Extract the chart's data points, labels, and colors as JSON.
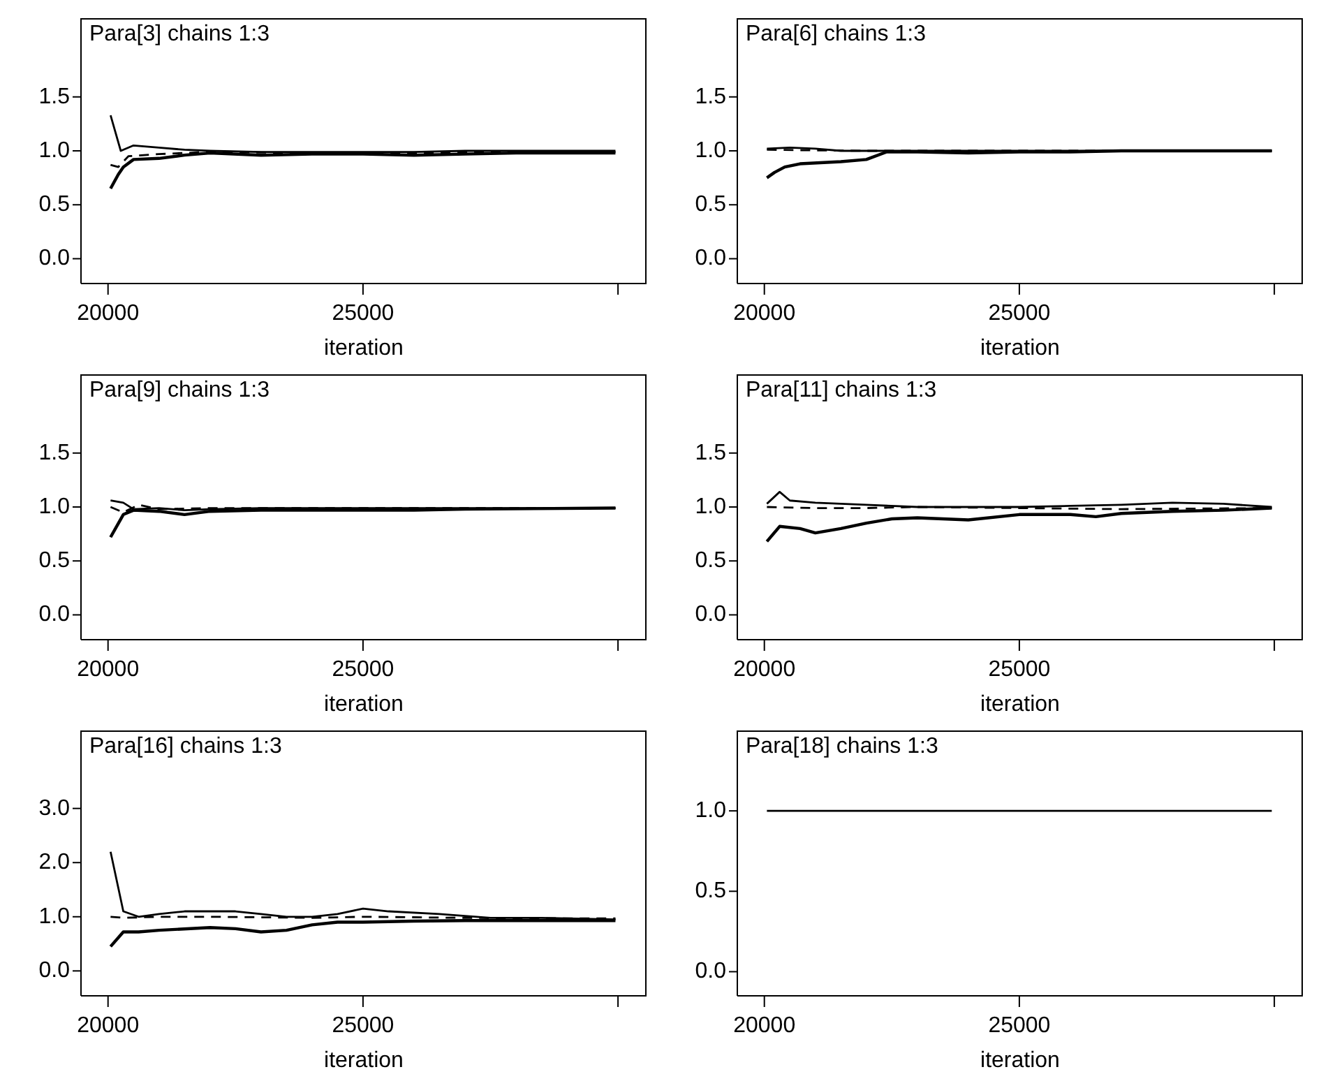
{
  "chart_data": [
    {
      "type": "line",
      "title": "Para[3] chains 1:3",
      "xlabel": "iteration",
      "xlim": [
        19470,
        30560
      ],
      "xticks": [
        {
          "value": 20000,
          "label": "20000"
        },
        {
          "value": 25000,
          "label": "25000"
        },
        {
          "value": 30000,
          "label": null
        }
      ],
      "ylim": [
        -0.23,
        2.23
      ],
      "yticks": [
        {
          "value": 0,
          "label": "0.0"
        },
        {
          "value": 0.5,
          "label": "0.5"
        },
        {
          "value": 1,
          "label": "1.0"
        },
        {
          "value": 1.5,
          "label": "1.5"
        }
      ],
      "series": [
        {
          "color": "#000000",
          "line_style": "solid",
          "x": [
            20050,
            20250,
            20500,
            21000,
            21500,
            22000,
            23000,
            24000,
            25000,
            26000,
            27000,
            28000,
            29000,
            29950
          ],
          "values": [
            1.33,
            1.0,
            1.05,
            1.03,
            1.01,
            1.0,
            0.99,
            0.99,
            0.99,
            0.99,
            1.0,
            1.0,
            1.0,
            1.0
          ]
        },
        {
          "color": "#000000",
          "line_style": "solid",
          "x": [
            20050,
            20200,
            20300,
            20500,
            21000,
            21500,
            22000,
            23000,
            24000,
            25000,
            26000,
            27000,
            28000,
            29000,
            29950
          ],
          "values": [
            0.65,
            0.78,
            0.85,
            0.92,
            0.93,
            0.96,
            0.98,
            0.96,
            0.97,
            0.97,
            0.96,
            0.97,
            0.98,
            0.98,
            0.98
          ]
        },
        {
          "color": "#000000",
          "line_style": "dashed",
          "x": [
            20050,
            20200,
            20400,
            21000,
            22000,
            24000,
            26000,
            28000,
            29950
          ],
          "values": [
            0.87,
            0.85,
            0.95,
            0.97,
            0.99,
            0.98,
            0.98,
            0.99,
            0.99
          ]
        }
      ]
    },
    {
      "type": "line",
      "title": "Para[6] chains 1:3",
      "xlabel": "iteration",
      "xlim": [
        19470,
        30560
      ],
      "xticks": [
        {
          "value": 20000,
          "label": "20000"
        },
        {
          "value": 25000,
          "label": "25000"
        },
        {
          "value": 30000,
          "label": null
        }
      ],
      "ylim": [
        -0.23,
        2.23
      ],
      "yticks": [
        {
          "value": 0,
          "label": "0.0"
        },
        {
          "value": 0.5,
          "label": "0.5"
        },
        {
          "value": 1,
          "label": "1.0"
        },
        {
          "value": 1.5,
          "label": "1.5"
        }
      ],
      "series": [
        {
          "color": "#000000",
          "line_style": "solid",
          "x": [
            20050,
            20500,
            21000,
            21500,
            22000,
            23000,
            25000,
            27000,
            29950
          ],
          "values": [
            1.02,
            1.03,
            1.02,
            1.0,
            1.0,
            1.0,
            1.0,
            1.0,
            1.0
          ]
        },
        {
          "color": "#000000",
          "line_style": "solid",
          "x": [
            20050,
            20200,
            20400,
            20700,
            21500,
            22000,
            22400,
            23000,
            24000,
            25000,
            26000,
            27000,
            28000,
            29950
          ],
          "values": [
            0.75,
            0.8,
            0.85,
            0.88,
            0.9,
            0.92,
            0.99,
            0.99,
            0.98,
            0.99,
            0.99,
            1.0,
            1.0,
            1.0
          ]
        },
        {
          "color": "#000000",
          "line_style": "dashed",
          "x": [
            20050,
            22000,
            29950
          ],
          "values": [
            1.01,
            1.0,
            1.0
          ]
        }
      ]
    },
    {
      "type": "line",
      "title": "Para[9] chains 1:3",
      "xlabel": "iteration",
      "xlim": [
        19470,
        30560
      ],
      "xticks": [
        {
          "value": 20000,
          "label": "20000"
        },
        {
          "value": 25000,
          "label": "25000"
        },
        {
          "value": 30000,
          "label": null
        }
      ],
      "ylim": [
        -0.23,
        2.23
      ],
      "yticks": [
        {
          "value": 0,
          "label": "0.0"
        },
        {
          "value": 0.5,
          "label": "0.5"
        },
        {
          "value": 1,
          "label": "1.0"
        },
        {
          "value": 1.5,
          "label": "1.5"
        }
      ],
      "series": [
        {
          "color": "#000000",
          "line_style": "solid",
          "x": [
            20050,
            20300,
            20500,
            21000,
            21500,
            22000,
            23000,
            29950
          ],
          "values": [
            1.06,
            1.04,
            0.98,
            0.99,
            0.97,
            0.98,
            0.99,
            0.99
          ]
        },
        {
          "color": "#000000",
          "line_style": "solid",
          "x": [
            20050,
            20300,
            20500,
            21000,
            21500,
            22000,
            23000,
            24000,
            25000,
            26000,
            27000,
            29950
          ],
          "values": [
            0.72,
            0.93,
            0.97,
            0.96,
            0.93,
            0.96,
            0.97,
            0.97,
            0.97,
            0.97,
            0.98,
            0.99
          ]
        },
        {
          "color": "#000000",
          "line_style": "dashed",
          "x": [
            20050,
            20300,
            20600,
            21000,
            22000,
            29950
          ],
          "values": [
            1.0,
            0.95,
            1.02,
            0.98,
            0.99,
            0.99
          ]
        }
      ]
    },
    {
      "type": "line",
      "title": "Para[11] chains 1:3",
      "xlabel": "iteration",
      "xlim": [
        19470,
        30560
      ],
      "xticks": [
        {
          "value": 20000,
          "label": "20000"
        },
        {
          "value": 25000,
          "label": "25000"
        },
        {
          "value": 30000,
          "label": null
        }
      ],
      "ylim": [
        -0.23,
        2.23
      ],
      "yticks": [
        {
          "value": 0,
          "label": "0.0"
        },
        {
          "value": 0.5,
          "label": "0.5"
        },
        {
          "value": 1,
          "label": "1.0"
        },
        {
          "value": 1.5,
          "label": "1.5"
        }
      ],
      "series": [
        {
          "color": "#000000",
          "line_style": "solid",
          "x": [
            20050,
            20300,
            20500,
            21000,
            22000,
            23000,
            24000,
            25000,
            26000,
            27000,
            28000,
            29000,
            29950
          ],
          "values": [
            1.03,
            1.14,
            1.06,
            1.04,
            1.02,
            1.0,
            1.0,
            1.0,
            1.01,
            1.02,
            1.04,
            1.03,
            1.0
          ]
        },
        {
          "color": "#000000",
          "line_style": "solid",
          "x": [
            20050,
            20300,
            20700,
            21000,
            21500,
            22000,
            22500,
            23000,
            24000,
            25000,
            26000,
            26500,
            27000,
            28000,
            29000,
            29950
          ],
          "values": [
            0.68,
            0.82,
            0.8,
            0.76,
            0.8,
            0.85,
            0.89,
            0.9,
            0.88,
            0.93,
            0.93,
            0.91,
            0.94,
            0.96,
            0.97,
            0.99
          ]
        },
        {
          "color": "#000000",
          "line_style": "dashed",
          "x": [
            20050,
            21000,
            22000,
            23000,
            25000,
            27000,
            29950
          ],
          "values": [
            1.0,
            0.99,
            0.99,
            1.0,
            0.99,
            0.98,
            0.99
          ]
        }
      ]
    },
    {
      "type": "line",
      "title": "Para[16] chains 1:3",
      "xlabel": "iteration",
      "xlim": [
        19470,
        30560
      ],
      "xticks": [
        {
          "value": 20000,
          "label": "20000"
        },
        {
          "value": 25000,
          "label": "25000"
        },
        {
          "value": 30000,
          "label": null
        }
      ],
      "ylim": [
        -0.46,
        4.44
      ],
      "yticks": [
        {
          "value": 0,
          "label": "0.0"
        },
        {
          "value": 1,
          "label": "1.0"
        },
        {
          "value": 2,
          "label": "2.0"
        },
        {
          "value": 3,
          "label": "3.0"
        }
      ],
      "series": [
        {
          "color": "#000000",
          "line_style": "solid",
          "x": [
            20050,
            20300,
            20600,
            21000,
            21500,
            22500,
            23000,
            23500,
            24000,
            24500,
            25000,
            25500,
            26500,
            27500,
            28500,
            29950
          ],
          "values": [
            2.2,
            1.1,
            1.0,
            1.05,
            1.1,
            1.1,
            1.05,
            1.0,
            1.0,
            1.05,
            1.15,
            1.1,
            1.05,
            0.98,
            0.98,
            0.95
          ]
        },
        {
          "color": "#000000",
          "line_style": "solid",
          "x": [
            20050,
            20300,
            20600,
            21000,
            22000,
            22500,
            23000,
            23500,
            24000,
            24500,
            25000,
            26000,
            27000,
            28000,
            29000,
            29950
          ],
          "values": [
            0.45,
            0.72,
            0.72,
            0.75,
            0.8,
            0.78,
            0.72,
            0.75,
            0.85,
            0.9,
            0.9,
            0.92,
            0.93,
            0.93,
            0.93,
            0.93
          ]
        },
        {
          "color": "#000000",
          "line_style": "dashed",
          "x": [
            20050,
            20300,
            21000,
            22000,
            24000,
            25000,
            27000,
            29000,
            29950
          ],
          "values": [
            1.0,
            0.98,
            1.0,
            1.0,
            0.98,
            1.0,
            0.98,
            0.97,
            0.97
          ]
        }
      ]
    },
    {
      "type": "line",
      "title": "Para[18] chains 1:3",
      "xlabel": "iteration",
      "xlim": [
        19470,
        30560
      ],
      "xticks": [
        {
          "value": 20000,
          "label": "20000"
        },
        {
          "value": 25000,
          "label": "25000"
        },
        {
          "value": 30000,
          "label": null
        }
      ],
      "ylim": [
        -0.15,
        1.5
      ],
      "yticks": [
        {
          "value": 0,
          "label": "0.0"
        },
        {
          "value": 0.5,
          "label": "0.5"
        },
        {
          "value": 1,
          "label": "1.0"
        }
      ],
      "series": [
        {
          "color": "#000000",
          "line_style": "solid",
          "x": [
            20050,
            29950
          ],
          "values": [
            1.0,
            1.0
          ]
        }
      ]
    }
  ]
}
